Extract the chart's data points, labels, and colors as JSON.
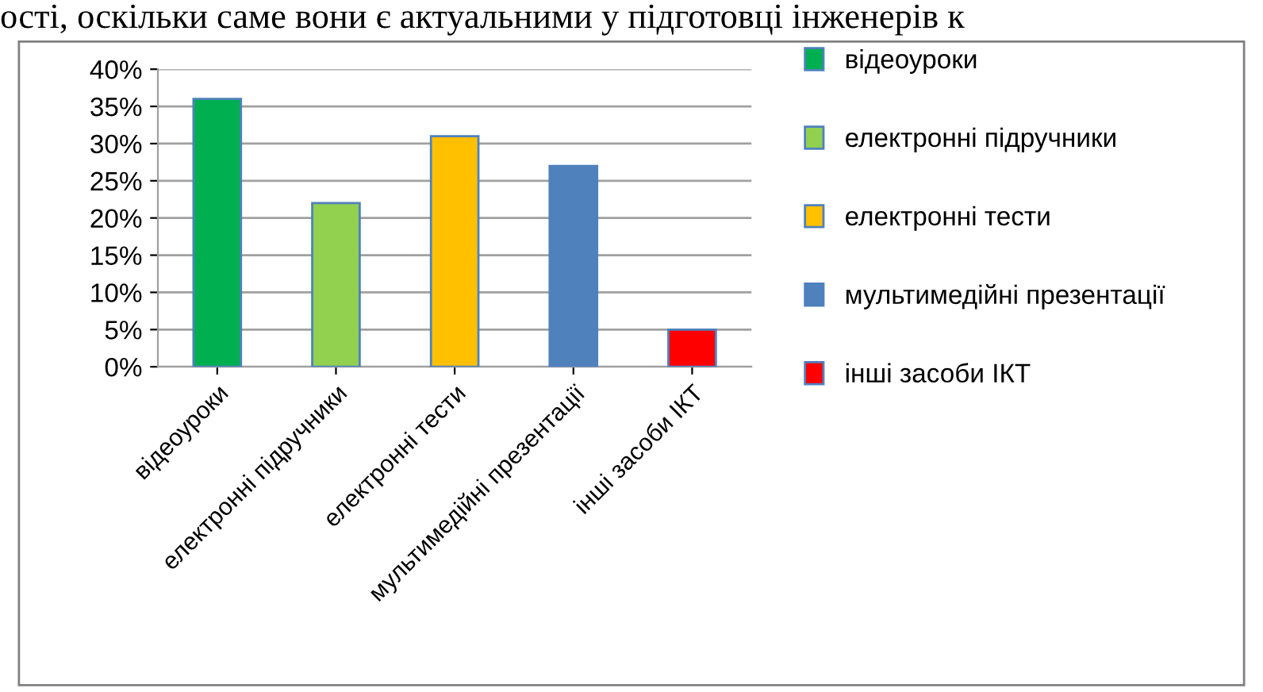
{
  "chart_data": {
    "type": "bar",
    "categories": [
      "відеоуроки",
      "електронні підручники",
      "електронні тести",
      "мультимедійні презентації",
      "інші засоби ІКТ"
    ],
    "series": [
      {
        "name": "відеоуроки",
        "color": "#00b050",
        "values": [
          36,
          null,
          null,
          null,
          null
        ]
      },
      {
        "name": "електронні підручники",
        "color": "#92d050",
        "values": [
          null,
          22,
          null,
          null,
          null
        ]
      },
      {
        "name": "електронні тести",
        "color": "#ffc000",
        "values": [
          null,
          null,
          31,
          null,
          null
        ]
      },
      {
        "name": "мультимедійні презентації",
        "color": "#4f81bd",
        "values": [
          null,
          null,
          null,
          27,
          null
        ]
      },
      {
        "name": "інші засоби ІКТ",
        "color": "#ff0000",
        "values": [
          null,
          null,
          null,
          null,
          5
        ]
      }
    ],
    "stacked": true,
    "ylim": [
      0,
      40
    ],
    "yticks": [
      {
        "value": 0,
        "label": "0%"
      },
      {
        "value": 5,
        "label": "5%"
      },
      {
        "value": 10,
        "label": "10%"
      },
      {
        "value": 15,
        "label": "15%"
      },
      {
        "value": 20,
        "label": "20%"
      },
      {
        "value": 25,
        "label": "25%"
      },
      {
        "value": 30,
        "label": "30%"
      },
      {
        "value": 35,
        "label": "35%"
      },
      {
        "value": 40,
        "label": "40%"
      }
    ],
    "grid": "y",
    "legend": "right",
    "annotations": [
      "ості, оскільки саме вони є актуальними у підготовці інженерів к"
    ]
  }
}
